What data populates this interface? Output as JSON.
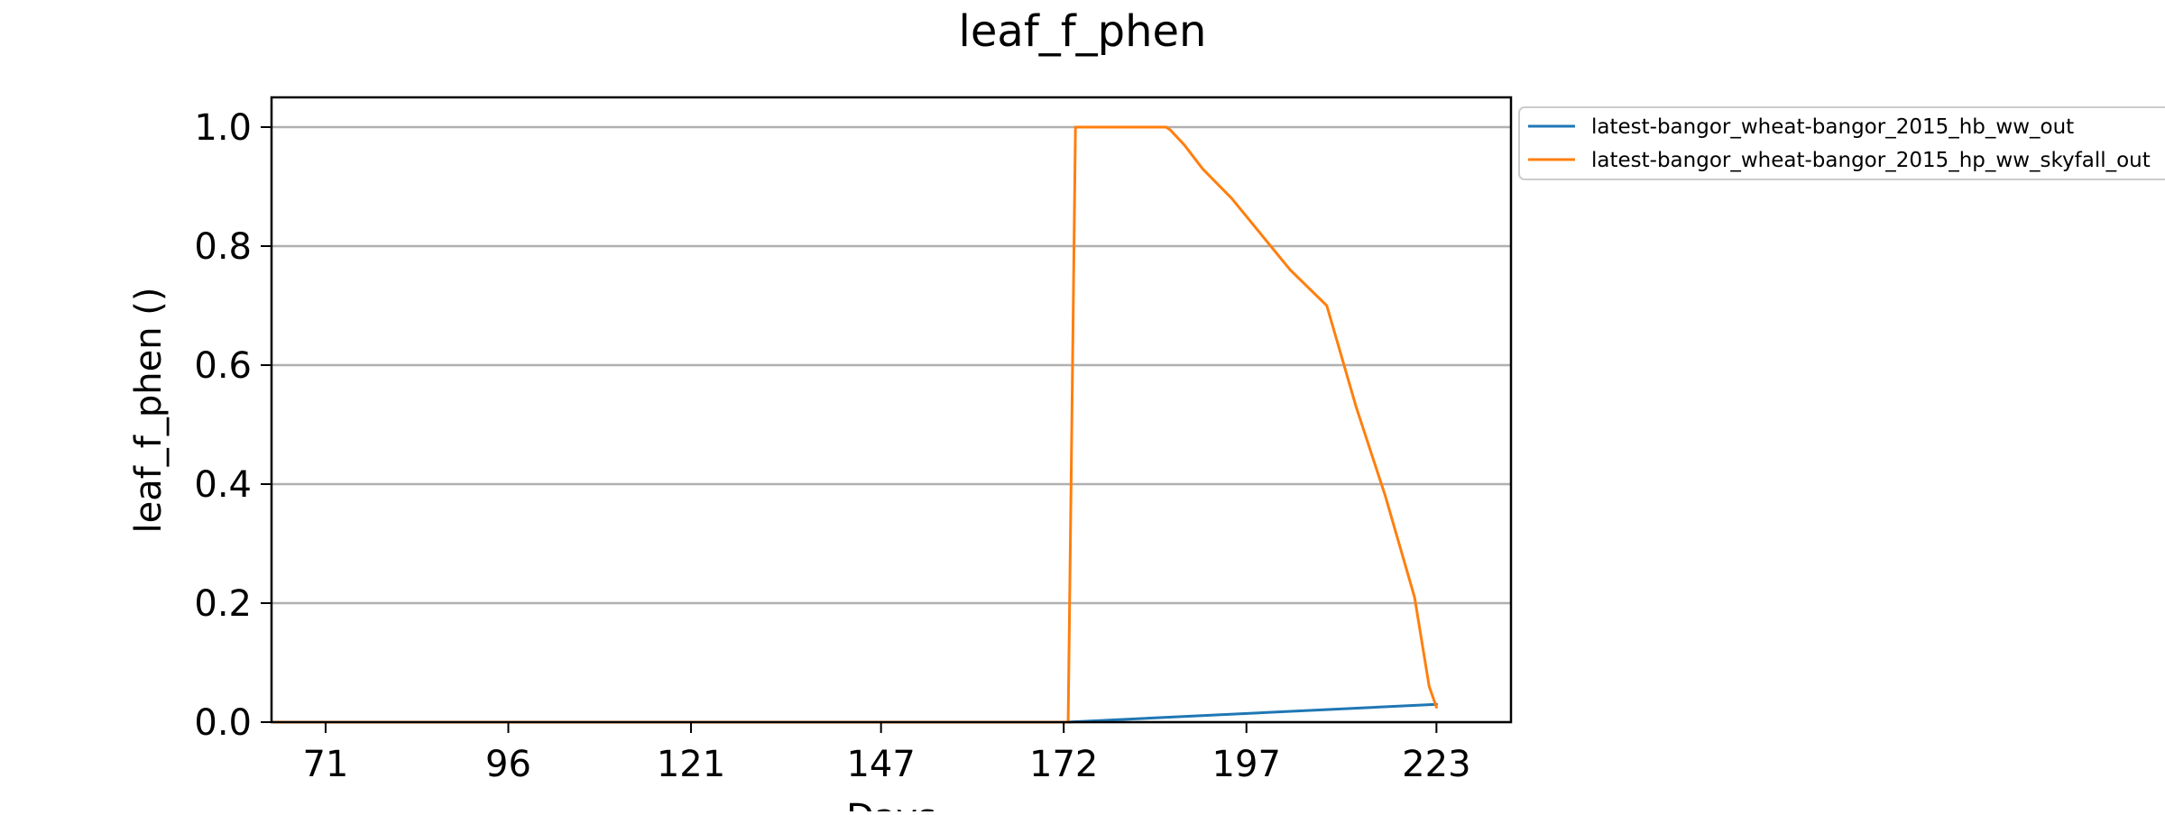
{
  "chart_data": {
    "type": "line",
    "title": "leaf_f_phen",
    "xlabel": "Days",
    "ylabel": "leaf_f_phen ()",
    "xlim": [
      63.6,
      233.2
    ],
    "ylim": [
      0.0,
      1.05
    ],
    "x_ticks": [
      71,
      96,
      121,
      147,
      172,
      197,
      223
    ],
    "y_ticks": [
      0.0,
      0.2,
      0.4,
      0.6,
      0.8,
      1.0
    ],
    "y_tick_labels": [
      "0.0",
      "0.2",
      "0.4",
      "0.6",
      "0.8",
      "1.0"
    ],
    "grid": "horizontal",
    "legend_position": "outside-top-right",
    "series": [
      {
        "name": "latest-bangor_wheat-bangor_2015_hb_ww_out",
        "color": "#1f77b4",
        "x": [
          64,
          110,
          150,
          172.5,
          223
        ],
        "y": [
          0.0,
          0.0,
          0.0,
          0.0,
          0.03
        ]
      },
      {
        "name": "latest-bangor_wheat-bangor_2015_hp_ww_skyfall_out",
        "color": "#ff7f0e",
        "x": [
          64,
          100,
          140,
          172.6,
          173.6,
          186,
          186.6,
          188.5,
          191,
          195,
          199,
          203,
          208,
          212,
          216,
          220,
          222,
          223
        ],
        "y": [
          0.0,
          0.0,
          0.0,
          0.0,
          1.0,
          1.0,
          0.995,
          0.97,
          0.93,
          0.88,
          0.82,
          0.76,
          0.7,
          0.53,
          0.38,
          0.21,
          0.06,
          0.025
        ]
      }
    ]
  }
}
